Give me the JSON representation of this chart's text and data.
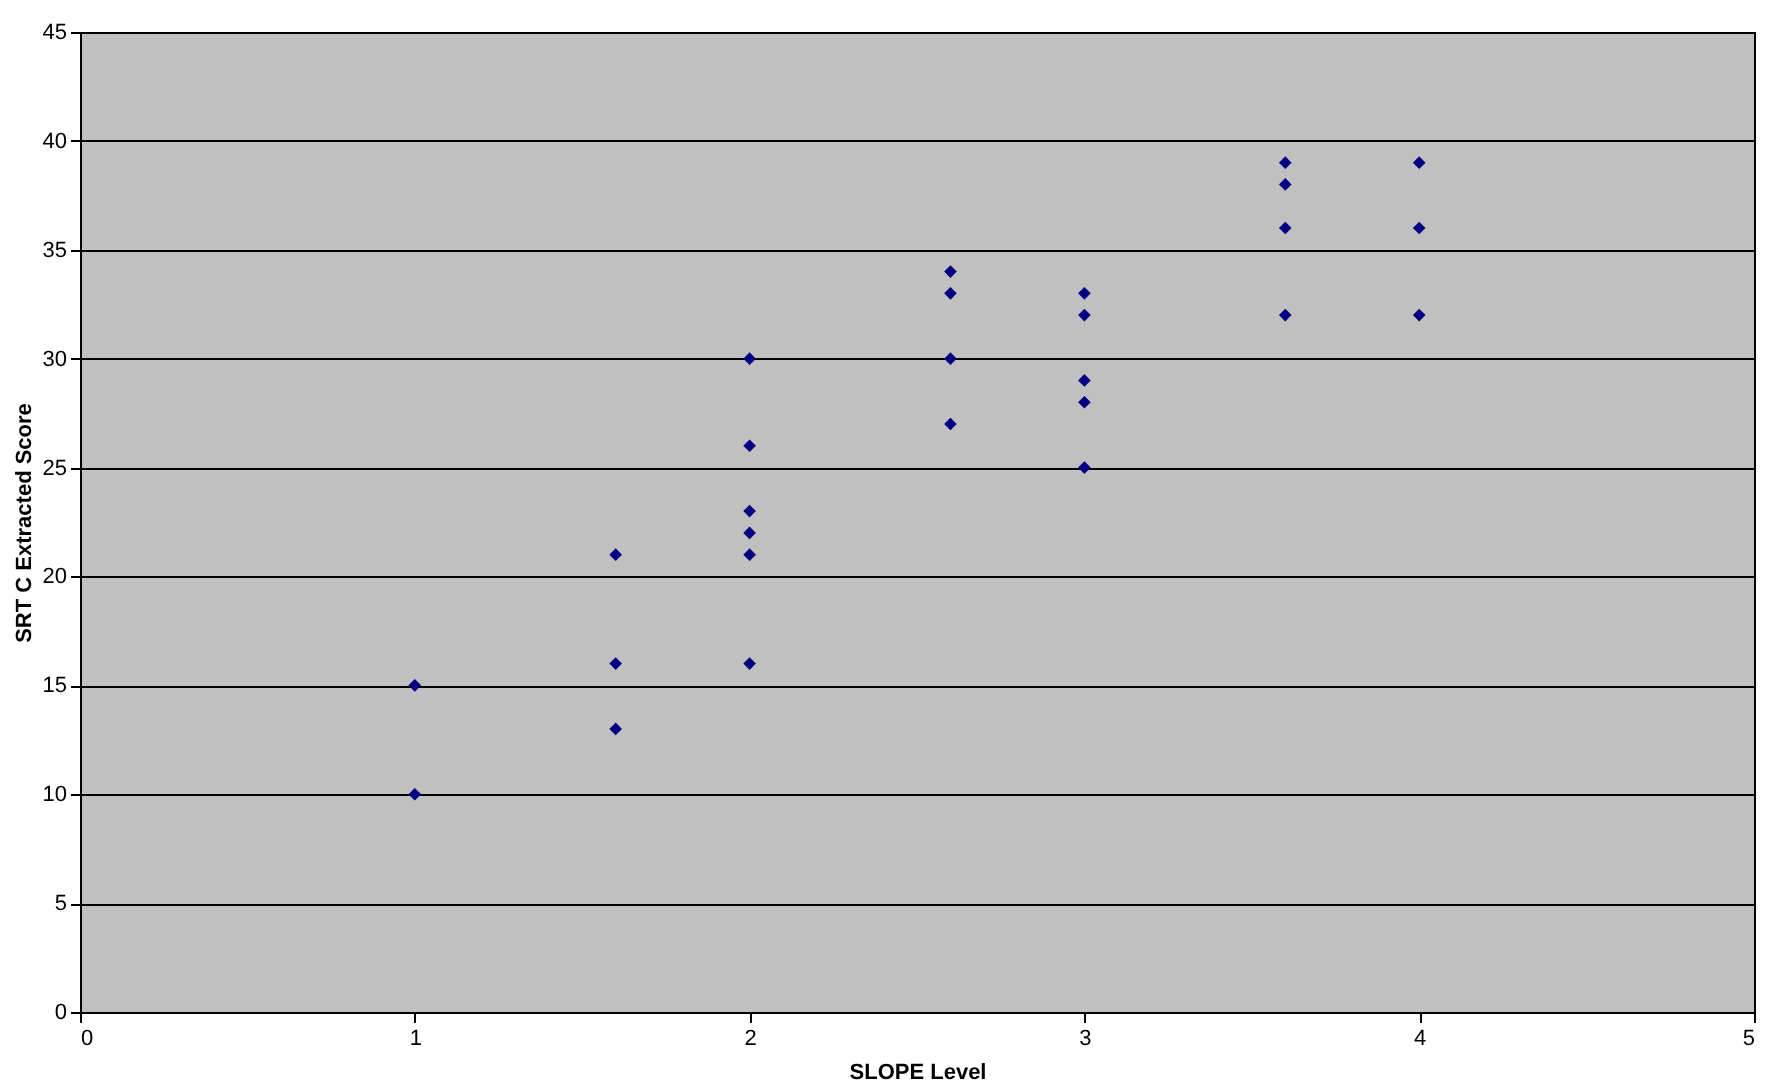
{
  "chart_data": {
    "type": "scatter",
    "xlabel": "SLOPE Level",
    "ylabel": "SRT C Extracted Score",
    "x": [
      1,
      1,
      1.6,
      1.6,
      1.6,
      2,
      2,
      2,
      2,
      2,
      2,
      2.6,
      2.6,
      2.6,
      2.6,
      3,
      3,
      3,
      3,
      3,
      3.6,
      3.6,
      3.6,
      3.6,
      4,
      4,
      4
    ],
    "series": [
      {
        "color": "#000080",
        "values": [
          15,
          10,
          21,
          16,
          13,
          30,
          26,
          23,
          22,
          21,
          16,
          34,
          33,
          30,
          27,
          33,
          32,
          29,
          28,
          25,
          39,
          38,
          36,
          32,
          39,
          36,
          32
        ]
      }
    ],
    "xlim": [
      0,
      5
    ],
    "xticks": [
      0,
      1,
      2,
      3,
      4,
      5
    ],
    "ylim": [
      0,
      45
    ],
    "yticks": [
      0,
      5,
      10,
      15,
      20,
      25,
      30,
      35,
      40,
      45
    ],
    "grid": "y",
    "marker": "diamond"
  }
}
